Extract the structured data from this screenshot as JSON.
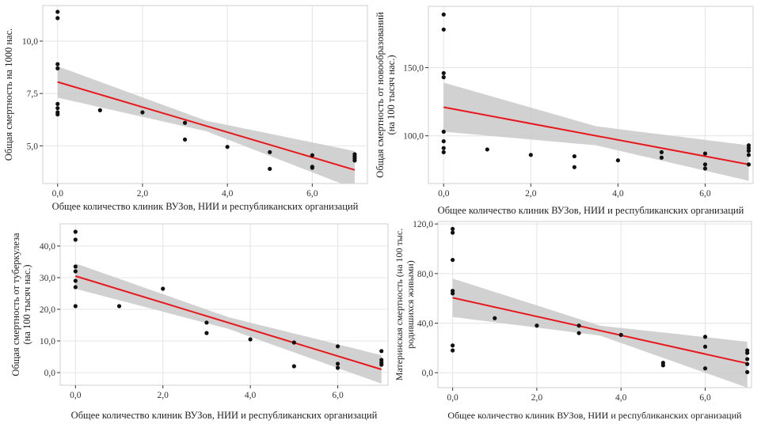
{
  "chart_data": [
    {
      "type": "scatter",
      "xlabel": "Общее количество клиник ВУЗов, НИИ и республиканских организаций",
      "ylabel_lines": [
        "Общая смертность на 1000 нас."
      ],
      "xlim": [
        -0.35,
        7.3
      ],
      "ylim": [
        3.2,
        11.7
      ],
      "xticks": [
        0,
        2,
        4,
        6
      ],
      "xtick_labels": [
        "0,0",
        "2,0",
        "4,0",
        "6,0"
      ],
      "yticks": [
        5,
        7.5,
        10
      ],
      "ytick_labels": [
        "5,0",
        "7,5",
        "10,0"
      ],
      "fit": {
        "x": [
          0,
          7
        ],
        "y": [
          8.05,
          3.85
        ]
      },
      "ci_band": {
        "x": [
          0,
          3.5,
          7
        ],
        "upper": [
          8.8,
          6.2,
          4.75
        ],
        "lower": [
          7.3,
          5.7,
          2.95
        ]
      },
      "points": [
        [
          0,
          11.4
        ],
        [
          0,
          11.1
        ],
        [
          0,
          8.9
        ],
        [
          0,
          8.7
        ],
        [
          0,
          7.0
        ],
        [
          0,
          6.8
        ],
        [
          0,
          6.6
        ],
        [
          0,
          6.5
        ],
        [
          1,
          6.7
        ],
        [
          2,
          6.6
        ],
        [
          3,
          6.1
        ],
        [
          3,
          5.3
        ],
        [
          4,
          4.95
        ],
        [
          5,
          4.7
        ],
        [
          5,
          3.9
        ],
        [
          6,
          4.55
        ],
        [
          6,
          4.0
        ],
        [
          6,
          3.95
        ],
        [
          7,
          4.6
        ],
        [
          7,
          4.5
        ],
        [
          7,
          4.4
        ],
        [
          7,
          4.3
        ]
      ],
      "colors": {
        "fit": "#e8171c",
        "band": "#c9c9c9",
        "points": "#111111"
      }
    },
    {
      "type": "scatter",
      "xlabel": "Общее количество клиник ВУЗов, НИИ и республиканских организаций",
      "ylabel_lines": [
        "Общая смертность от новообразований",
        "(на 100 тысяч нас.)"
      ],
      "xlim": [
        -0.35,
        7.1
      ],
      "ylim": [
        65,
        195
      ],
      "xticks": [
        0,
        2,
        4,
        6
      ],
      "xtick_labels": [
        "0,0",
        "2,0",
        "4,0",
        "6,0"
      ],
      "yticks": [
        100,
        150
      ],
      "ytick_labels": [
        "100,0",
        "150,0"
      ],
      "fit": {
        "x": [
          0,
          7
        ],
        "y": [
          121,
          79
        ]
      },
      "ci_band": {
        "x": [
          0,
          3.5,
          7
        ],
        "upper": [
          139,
          107,
          93
        ],
        "lower": [
          103,
          93,
          67
        ]
      },
      "points": [
        [
          0,
          189
        ],
        [
          0,
          178
        ],
        [
          0,
          146
        ],
        [
          0,
          143
        ],
        [
          0,
          103
        ],
        [
          0,
          96
        ],
        [
          0,
          91
        ],
        [
          0,
          88
        ],
        [
          1,
          90
        ],
        [
          2,
          86
        ],
        [
          3,
          85
        ],
        [
          3,
          77
        ],
        [
          4,
          82
        ],
        [
          5,
          88
        ],
        [
          5,
          84
        ],
        [
          6,
          87
        ],
        [
          6,
          79
        ],
        [
          6,
          76
        ],
        [
          7,
          93
        ],
        [
          7,
          91
        ],
        [
          7,
          89
        ],
        [
          7,
          86
        ],
        [
          7,
          79
        ]
      ],
      "colors": {
        "fit": "#e8171c",
        "band": "#c9c9c9",
        "points": "#111111"
      }
    },
    {
      "type": "scatter",
      "xlabel": "Общее количество клиник ВУЗов, НИИ и республиканских организаций",
      "ylabel_lines": [
        "Общая смертность от туберкулеза",
        "(на 100 тысяч нас.)"
      ],
      "xlim": [
        -0.35,
        7.15
      ],
      "ylim": [
        -4,
        47
      ],
      "xticks": [
        0,
        2,
        4,
        6
      ],
      "xtick_labels": [
        "0,0",
        "2,0",
        "4,0",
        "6,0"
      ],
      "yticks": [
        0,
        10,
        20,
        30,
        40
      ],
      "ytick_labels": [
        "0,0",
        "10,0",
        "20,0",
        "30,0",
        "40,0"
      ],
      "fit": {
        "x": [
          0,
          7
        ],
        "y": [
          30.5,
          1.0
        ]
      },
      "ci_band": {
        "x": [
          0,
          3.5,
          7
        ],
        "upper": [
          34.5,
          17.5,
          5.5
        ],
        "lower": [
          26.5,
          13.8,
          -3.5
        ]
      },
      "points": [
        [
          0,
          44.5
        ],
        [
          0,
          42
        ],
        [
          0,
          33.5
        ],
        [
          0,
          32
        ],
        [
          0,
          29
        ],
        [
          0,
          27
        ],
        [
          0,
          21
        ],
        [
          1,
          21
        ],
        [
          2,
          26.5
        ],
        [
          3,
          15.8
        ],
        [
          3,
          12.5
        ],
        [
          4,
          10.5
        ],
        [
          5,
          9.5
        ],
        [
          5,
          2.0
        ],
        [
          6,
          8.3
        ],
        [
          6,
          2.8
        ],
        [
          6,
          1.5
        ],
        [
          7,
          6.8
        ],
        [
          7,
          4.0
        ],
        [
          7,
          3.2
        ],
        [
          7,
          2.5
        ]
      ],
      "colors": {
        "fit": "#e8171c",
        "band": "#c9c9c9",
        "points": "#111111"
      }
    },
    {
      "type": "scatter",
      "xlabel": "Общее количество клиник ВУЗов, НИИ и республиканских организаций",
      "ylabel_lines": [
        "Материнская смертность (на 100 тыс.",
        "родившихся живыми)"
      ],
      "xlim": [
        -0.35,
        7.1
      ],
      "ylim": [
        -12,
        122
      ],
      "xticks": [
        0,
        2,
        4,
        6
      ],
      "xtick_labels": [
        "0,0",
        "2,0",
        "4,0",
        "6,0"
      ],
      "yticks": [
        0,
        40,
        80,
        120
      ],
      "ytick_labels": [
        "0,0",
        "40,0",
        "80,0",
        "120,0"
      ],
      "fit": {
        "x": [
          0,
          7
        ],
        "y": [
          60.5,
          7.5
        ]
      },
      "ci_band": {
        "x": [
          0,
          3.5,
          7
        ],
        "upper": [
          76,
          38,
          25
        ],
        "lower": [
          45,
          30,
          -12
        ]
      },
      "points": [
        [
          0,
          116
        ],
        [
          0,
          113
        ],
        [
          0,
          91
        ],
        [
          0,
          66
        ],
        [
          0,
          64
        ],
        [
          0,
          22
        ],
        [
          0,
          18
        ],
        [
          1,
          44
        ],
        [
          2,
          38
        ],
        [
          3,
          38
        ],
        [
          3,
          32
        ],
        [
          4,
          30.5
        ],
        [
          5,
          8
        ],
        [
          5,
          6
        ],
        [
          6,
          29
        ],
        [
          6,
          21
        ],
        [
          6,
          3.5
        ],
        [
          7,
          18
        ],
        [
          7,
          16
        ],
        [
          7,
          11
        ],
        [
          7,
          7
        ],
        [
          7,
          0.5
        ]
      ],
      "colors": {
        "fit": "#e8171c",
        "band": "#c9c9c9",
        "points": "#111111"
      }
    }
  ]
}
